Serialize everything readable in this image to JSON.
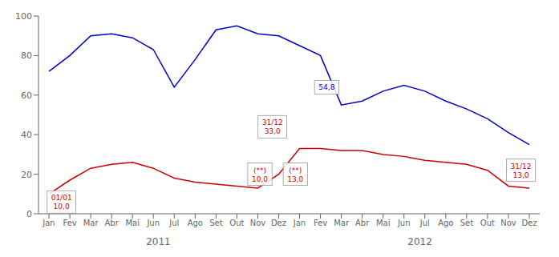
{
  "chart_data": {
    "type": "line",
    "categories": [
      "Jan",
      "Fev",
      "Mar",
      "Abr",
      "Mai",
      "Jun",
      "Jul",
      "Ago",
      "Set",
      "Out",
      "Nov",
      "Dez",
      "Jan",
      "Fev",
      "Mar",
      "Abr",
      "Mai",
      "Jun",
      "Jul",
      "Ago",
      "Set",
      "Out",
      "Nov",
      "Dez"
    ],
    "xlabels": [
      "2011",
      "2012"
    ],
    "series": [
      {
        "color": "#0000cc",
        "values": [
          72,
          80,
          90,
          91,
          89,
          83,
          64,
          78,
          93,
          95,
          91,
          90,
          85,
          80,
          55,
          57,
          62,
          65,
          62,
          57,
          53,
          48,
          41,
          35
        ]
      },
      {
        "color": "#cc0000",
        "values": [
          10,
          17,
          23,
          25,
          26,
          23,
          18,
          16,
          15,
          14,
          13,
          20,
          33,
          33,
          32,
          32,
          30,
          29,
          27,
          26,
          25,
          22,
          14,
          13
        ]
      }
    ],
    "ylim": [
      0,
      100
    ],
    "yticks": [
      0,
      20,
      40,
      60,
      80,
      100
    ],
    "grid": false,
    "annotations": [
      {
        "text": "01/01\n10,0",
        "color": "#cc0000"
      },
      {
        "text": "31/12\n33,0",
        "color": "#cc0000"
      },
      {
        "text": "54,8",
        "color": "#0000cc"
      },
      {
        "text": "(**)\n10,0",
        "color": "#cc0000"
      },
      {
        "text": "(**)\n13,0",
        "color": "#cc0000"
      },
      {
        "text": "31/12\n13,0",
        "color": "#cc0000"
      }
    ]
  }
}
